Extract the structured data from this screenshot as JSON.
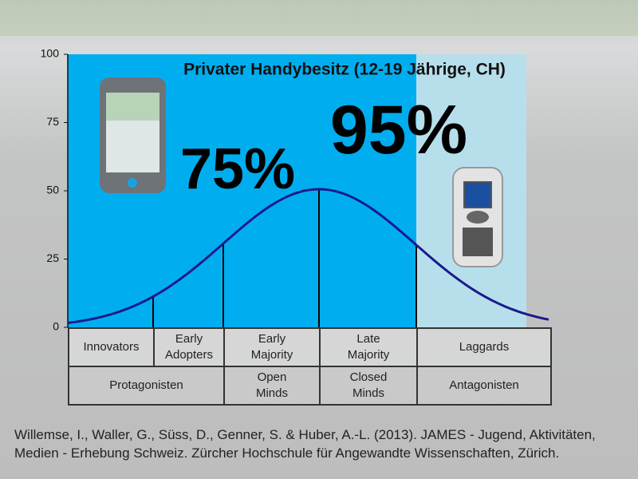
{
  "chart_data": {
    "type": "line",
    "title": "Privater Handybesitz (12-19 Jährige, CH)",
    "annotations": [
      "75%",
      "95%"
    ],
    "ylim": [
      0,
      100
    ],
    "yticks": [
      0,
      25,
      50,
      75,
      100
    ]
  },
  "table": {
    "rows": [
      [
        [
          "Innovators"
        ],
        [
          "Early",
          "Adopters"
        ],
        [
          "Early",
          "Majority"
        ],
        [
          "Late",
          "Majority"
        ],
        [
          "Laggards"
        ]
      ],
      [
        [
          "Protagonisten"
        ],
        [
          "Open",
          "Minds"
        ],
        [
          "Closed",
          "Minds"
        ],
        [
          "Antagonisten"
        ]
      ]
    ]
  },
  "citation": [
    "Willemse, I., Waller, G., Süss, D., Genner, S. & Huber, A.-L. (2013). JAMES - Jugend, Aktivitäten,",
    "Medien - Erhebung Schweiz. Zürcher Hochschule für Angewandte Wissenschaften, Zürich."
  ]
}
